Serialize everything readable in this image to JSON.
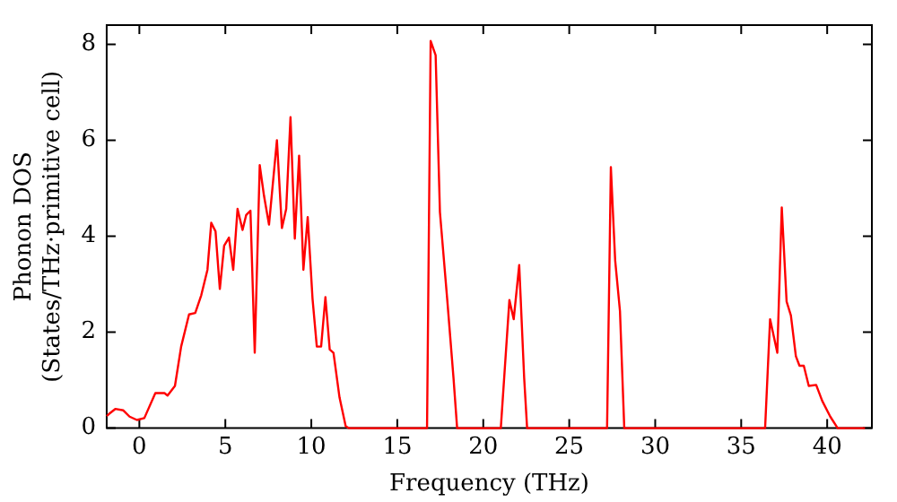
{
  "chart_data": {
    "type": "line",
    "xlabel": "Frequency (THz)",
    "ylabel": "Phonon DOS\n(States/THz·primitive cell)",
    "xlim": [
      -1.9,
      42.6
    ],
    "xticks": [
      0,
      5,
      10,
      15,
      20,
      25,
      30,
      35,
      40
    ],
    "ylim": [
      0,
      8.4
    ],
    "yticks": [
      0,
      2,
      4,
      6,
      8
    ],
    "grid": false,
    "legend": false,
    "marker": "none",
    "line_style": "solid",
    "series": [
      {
        "color": "#ff0000",
        "x": [
          -1.9,
          -1.75,
          -1.4,
          -0.93,
          -0.57,
          -0.14,
          0.29,
          0.93,
          1.46,
          1.64,
          2.07,
          2.43,
          2.89,
          3.25,
          3.6,
          3.96,
          4.18,
          4.43,
          4.68,
          4.93,
          5.21,
          5.46,
          5.71,
          6.0,
          6.21,
          6.46,
          6.71,
          7.0,
          7.25,
          7.54,
          8.0,
          8.29,
          8.54,
          8.79,
          9.04,
          9.29,
          9.54,
          9.79,
          10.07,
          10.32,
          10.57,
          10.82,
          11.07,
          11.29,
          11.64,
          12.0,
          12.18,
          16.73,
          16.94,
          17.23,
          17.48,
          17.9,
          18.27,
          18.48,
          21.02,
          21.52,
          21.77,
          22.09,
          22.38,
          22.55,
          27.2,
          27.42,
          27.67,
          27.95,
          28.2,
          36.39,
          36.68,
          37.1,
          37.36,
          37.64,
          37.89,
          38.18,
          38.39,
          38.64,
          38.93,
          39.36,
          39.71,
          40.18,
          40.61,
          42.2
        ],
        "values": [
          0.25,
          0.3,
          0.4,
          0.37,
          0.24,
          0.17,
          0.21,
          0.73,
          0.73,
          0.68,
          0.88,
          1.7,
          2.37,
          2.4,
          2.77,
          3.3,
          4.28,
          4.1,
          2.9,
          3.8,
          3.97,
          3.3,
          4.57,
          4.13,
          4.44,
          4.53,
          1.57,
          5.48,
          4.84,
          4.24,
          6.0,
          4.17,
          4.57,
          6.48,
          3.95,
          5.68,
          3.3,
          4.4,
          2.7,
          1.7,
          1.7,
          2.73,
          1.64,
          1.57,
          0.64,
          0.04,
          0,
          0,
          8.07,
          7.77,
          4.5,
          2.7,
          1.04,
          0,
          0,
          2.67,
          2.27,
          3.4,
          1.04,
          0,
          0,
          5.44,
          3.5,
          2.44,
          0,
          0,
          2.27,
          1.57,
          4.6,
          2.64,
          2.35,
          1.5,
          1.3,
          1.3,
          0.88,
          0.9,
          0.57,
          0.24,
          0,
          0
        ]
      }
    ]
  }
}
